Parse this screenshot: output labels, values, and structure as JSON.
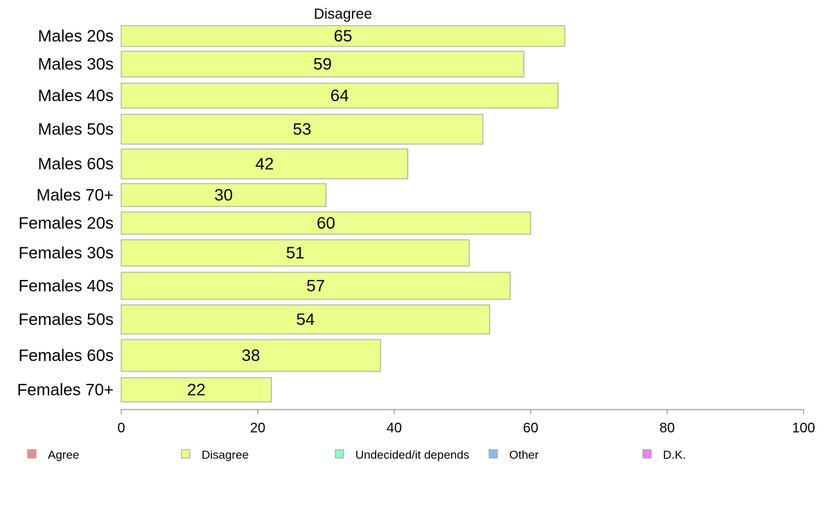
{
  "chart_data": {
    "type": "bar",
    "orientation": "horizontal",
    "title": "Disagree",
    "categories": [
      "Males 20s",
      "Males 30s",
      "Males 40s",
      "Males 50s",
      "Males 60s",
      "Males 70+",
      "Females 20s",
      "Females 30s",
      "Females 40s",
      "Females 50s",
      "Females 60s",
      "Females 70+"
    ],
    "values": [
      65,
      59,
      64,
      53,
      42,
      30,
      60,
      51,
      57,
      54,
      38,
      22
    ],
    "xlim": [
      0,
      100
    ],
    "xticks": [
      0,
      20,
      40,
      60,
      80,
      100
    ],
    "bar_color": "#ebff8c",
    "bar_stroke": "#999999",
    "grid": false,
    "legend": {
      "placement": "bottom",
      "items": [
        {
          "label": "Agree",
          "color": "#f28a8a"
        },
        {
          "label": "Disagree",
          "color": "#ebff8c"
        },
        {
          "label": "Undecided/it depends",
          "color": "#8cffc4"
        },
        {
          "label": "Other",
          "color": "#8cbaf2"
        },
        {
          "label": "D.K.",
          "color": "#ee82ee"
        }
      ]
    }
  }
}
